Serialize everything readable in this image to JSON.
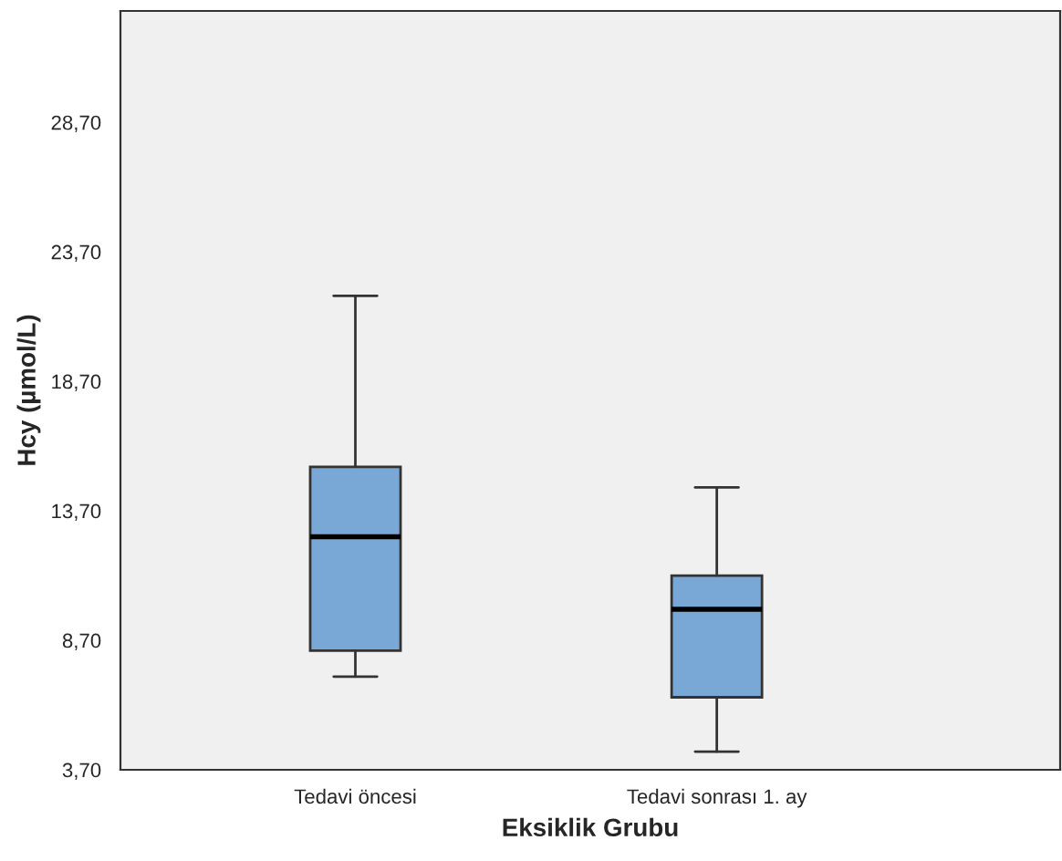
{
  "chart_data": {
    "type": "box",
    "xlabel": "Eksiklik Grubu",
    "ylabel": "Hcy (µmol/L)",
    "categories": [
      "Tedavi öncesi",
      "Tedavi sonrası 1. ay"
    ],
    "boxes": [
      {
        "low": 7.3,
        "q1": 8.3,
        "median": 12.7,
        "q3": 15.4,
        "high": 22.0
      },
      {
        "low": 4.4,
        "q1": 6.5,
        "median": 9.9,
        "q3": 11.2,
        "high": 14.6
      }
    ],
    "color": "#79a8d6",
    "ylim": [
      3.7,
      33.0
    ],
    "yticks": [
      {
        "value": 3.7,
        "label": "3,70"
      },
      {
        "value": 8.7,
        "label": "8,70"
      },
      {
        "value": 13.7,
        "label": "13,70"
      },
      {
        "value": 18.7,
        "label": "18,70"
      },
      {
        "value": 23.7,
        "label": "23,70"
      },
      {
        "value": 28.7,
        "label": "28,70"
      }
    ],
    "grid": false
  }
}
